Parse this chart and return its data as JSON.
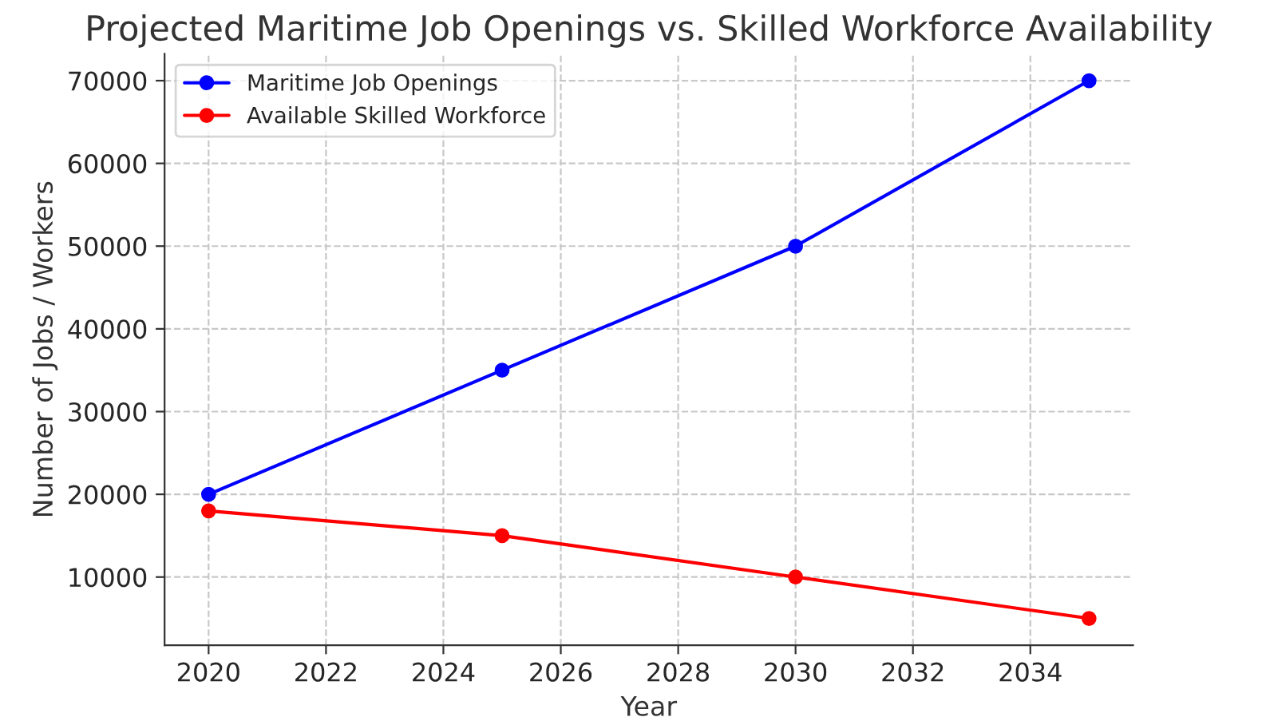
{
  "chart_data": {
    "type": "line",
    "title": "Projected Maritime Job Openings vs. Skilled Workforce Availability",
    "xlabel": "Year",
    "ylabel": "Number of Jobs / Workers",
    "x": [
      2020,
      2025,
      2030,
      2035
    ],
    "series": [
      {
        "name": "Maritime Job Openings",
        "color": "#0000ff",
        "values": [
          20000,
          35000,
          50000,
          70000
        ]
      },
      {
        "name": "Available Skilled Workforce",
        "color": "#ff0000",
        "values": [
          18000,
          15000,
          10000,
          5000
        ]
      }
    ],
    "xlim": [
      2019.25,
      2035.75
    ],
    "xticks": [
      2020,
      2022,
      2024,
      2026,
      2028,
      2030,
      2032,
      2034
    ],
    "ylim": [
      1750,
      73250
    ],
    "yticks": [
      10000,
      20000,
      30000,
      40000,
      50000,
      60000,
      70000
    ],
    "grid": true,
    "legend": "top left",
    "marker": "circle",
    "line_style": "solid"
  }
}
